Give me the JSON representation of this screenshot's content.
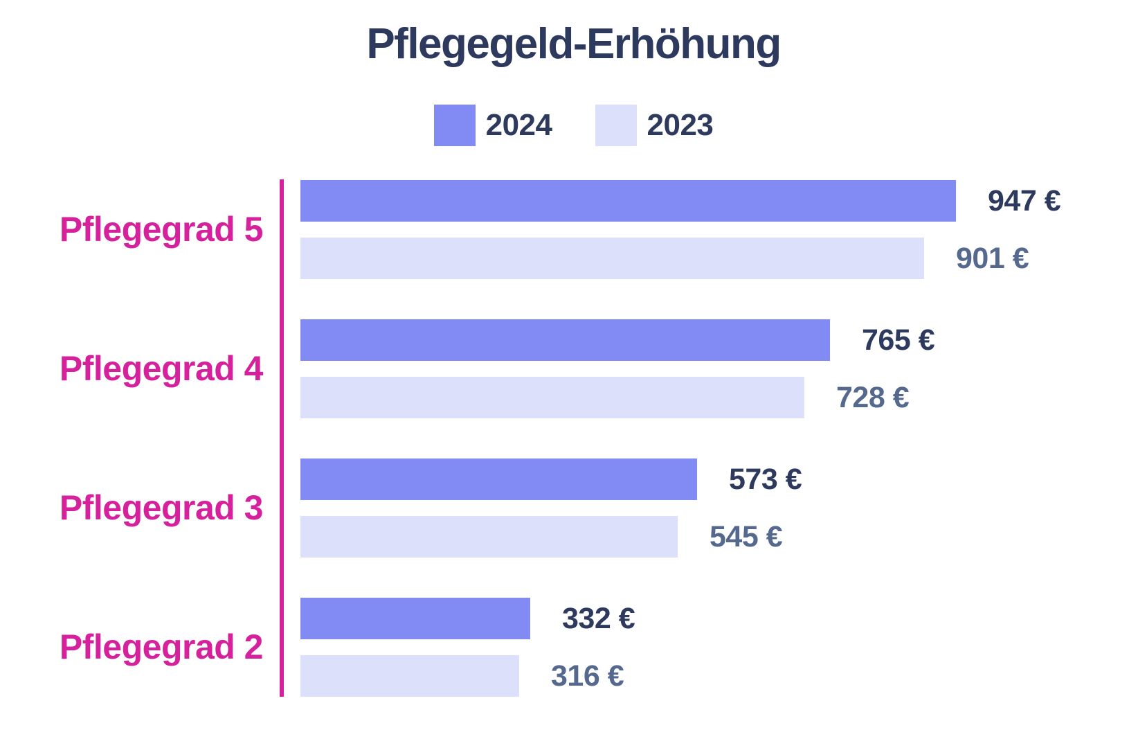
{
  "colors": {
    "background": "#FFFFFF",
    "title_text": "#2D3A5E",
    "legend_text": "#2D3A5E",
    "accent_magenta": "#D6219C"
  },
  "chart_data": {
    "type": "bar",
    "orientation": "horizontal",
    "title": "Pflegegeld-Erhöhung",
    "categories": [
      "Pflegegrad 5",
      "Pflegegrad 4",
      "Pflegegrad 3",
      "Pflegegrad 2"
    ],
    "series": [
      {
        "name": "2024",
        "values": [
          947,
          765,
          573,
          332
        ],
        "color": "#818BF3",
        "value_color": "#2D3A5E"
      },
      {
        "name": "2023",
        "values": [
          901,
          728,
          545,
          316
        ],
        "color": "#DCE0FA",
        "value_color": "#55688E"
      }
    ],
    "value_suffix": " €",
    "unit": "€",
    "xlim": [
      0,
      1000
    ],
    "grid": false,
    "legend_position": "top",
    "category_color": "#D6219C",
    "axis_line_color": "#D6219C"
  }
}
